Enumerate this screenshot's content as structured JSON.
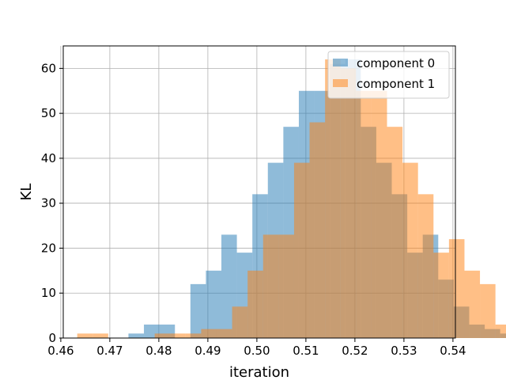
{
  "chart_data": {
    "type": "bar",
    "subtype": "overlaid-histogram",
    "title": "",
    "xlabel": "iteration",
    "ylabel": "KL",
    "xlim": [
      0.4605,
      0.5405
    ],
    "ylim": [
      0,
      65
    ],
    "xticks": [
      0.46,
      0.47,
      0.48,
      0.49,
      0.5,
      0.51,
      0.52,
      0.53,
      0.54
    ],
    "xtick_labels": [
      "0.46",
      "0.47",
      "0.48",
      "0.49",
      "0.50",
      "0.51",
      "0.52",
      "0.53",
      "0.54"
    ],
    "yticks": [
      0,
      10,
      20,
      30,
      40,
      50,
      60
    ],
    "ytick_labels": [
      "0",
      "10",
      "20",
      "30",
      "40",
      "50",
      "60"
    ],
    "grid": true,
    "legend_position": "top-right",
    "series": [
      {
        "name": "component 0",
        "color": "#1f77b4",
        "alpha": 0.5,
        "bin_start": 0.4738,
        "bin_width": 0.00316,
        "counts": [
          1,
          3,
          3,
          0,
          12,
          15,
          23,
          19,
          32,
          39,
          47,
          55,
          55,
          61,
          62,
          47,
          39,
          32,
          19,
          23,
          13,
          7,
          3,
          2,
          1,
          1,
          0,
          0,
          0,
          1,
          1
        ]
      },
      {
        "name": "component 1",
        "color": "#ff7f0e",
        "alpha": 0.5,
        "bin_start": 0.46335,
        "bin_width": 0.00316,
        "counts": [
          1,
          1,
          0,
          0,
          0,
          1,
          1,
          1,
          2,
          2,
          7,
          15,
          23,
          23,
          39,
          48,
          62,
          60,
          55,
          55,
          47,
          39,
          32,
          19,
          22,
          15,
          12,
          3,
          3,
          1,
          0,
          0,
          0
        ]
      }
    ]
  }
}
